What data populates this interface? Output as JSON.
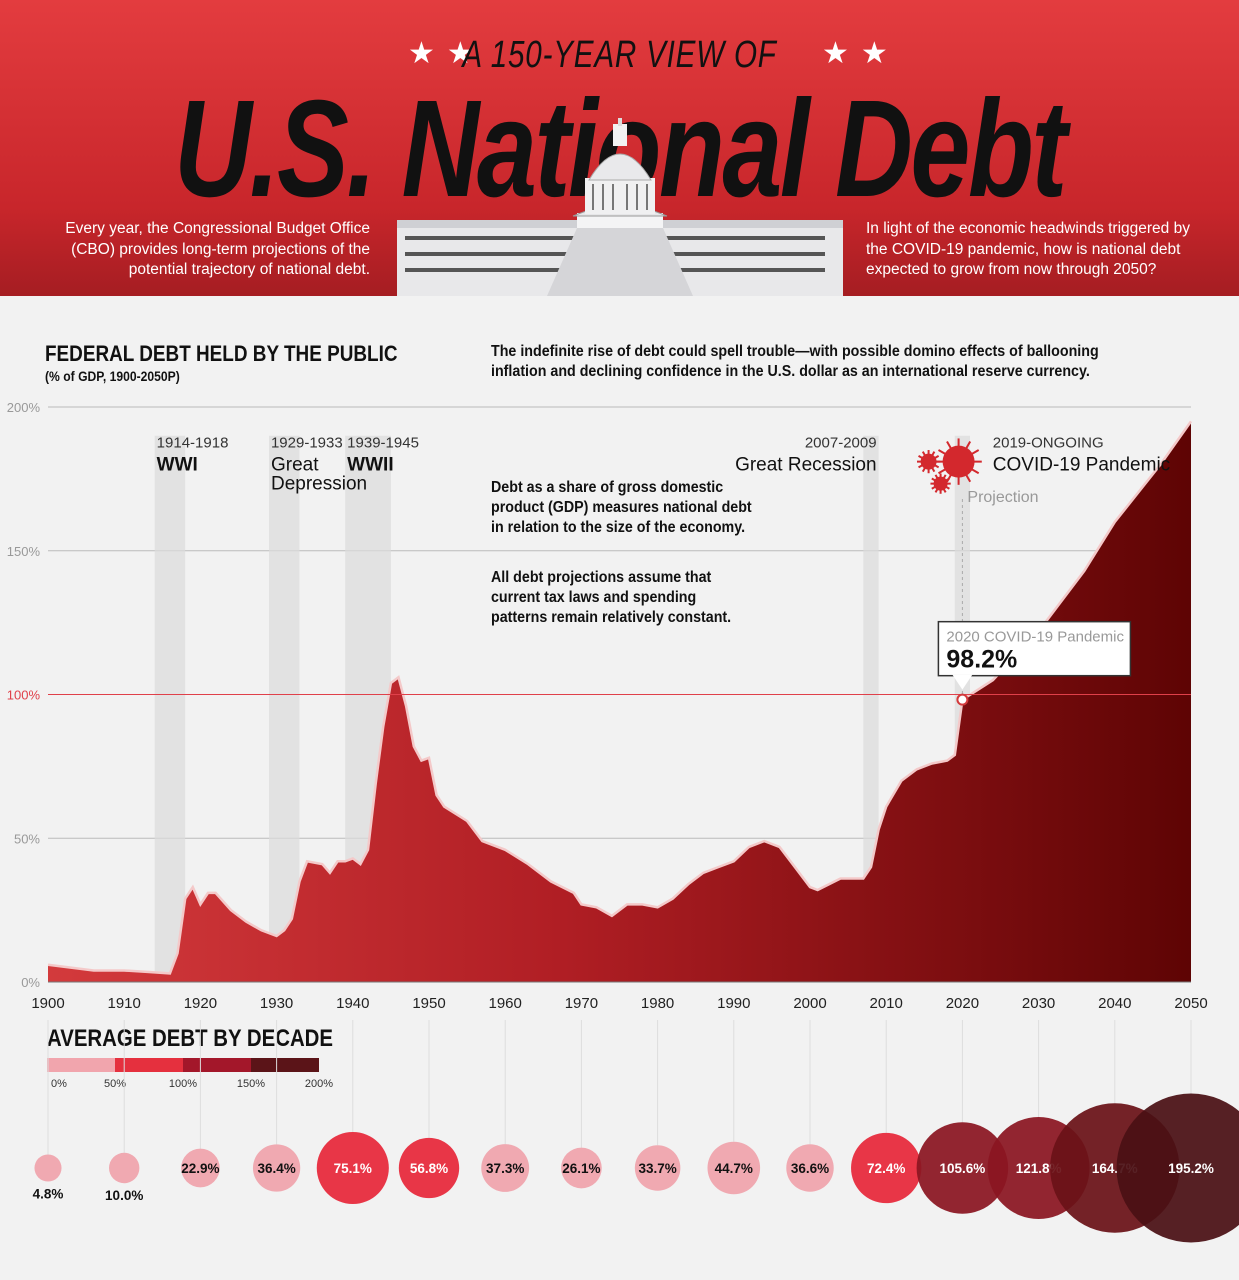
{
  "header": {
    "supertitle": "A 150-YEAR VIEW OF",
    "title": "U.S. National Debt",
    "intro_left": "Every year, the Congressional Budget Office (CBO) provides long-term projections of the potential trajectory of national debt.",
    "intro_right": "In light of the economic headwinds triggered by the COVID-19 pandemic, how is national debt expected to grow from now through 2050?"
  },
  "notes": {
    "top": "The indefinite rise of debt could spell trouble—with possible domino effects of ballooning inflation and declining confidence in the U.S. dollar as an international reserve currency.",
    "gdp": "Debt as a share of gross domestic product (GDP) measures national debt in relation to the size of the economy.",
    "assume": "All debt projections assume that current tax laws and spending patterns remain relatively constant."
  },
  "colors": {
    "header_red": "#d32f33",
    "area_light": "#d33a3c",
    "area_dark": "#5e0404",
    "line": "#f4c9c9",
    "ref_line": "#e0404a"
  },
  "chart_data": [
    {
      "type": "area",
      "title": "FEDERAL DEBT HELD BY THE PUBLIC",
      "subtitle": "(% of GDP, 1900-2050P)",
      "xlim": [
        1900,
        2050
      ],
      "ylim": [
        0,
        200
      ],
      "y_ticks": [
        0,
        50,
        100,
        150,
        200
      ],
      "y_tick_labels": [
        "0%",
        "50%",
        "100%",
        "150%",
        "200%"
      ],
      "x_ticks": [
        1900,
        1910,
        1920,
        1930,
        1940,
        1950,
        1960,
        1970,
        1980,
        1990,
        2000,
        2010,
        2020,
        2030,
        2040,
        2050
      ],
      "reference_line": 100,
      "projection_start": 2020,
      "projection_label": "Projection",
      "series": [
        {
          "x": [
            1900,
            1903,
            1906,
            1910,
            1913,
            1916,
            1917,
            1918,
            1919,
            1920,
            1921,
            1922,
            1924,
            1926,
            1928,
            1930,
            1931,
            1932,
            1933,
            1934,
            1936,
            1937,
            1938,
            1939,
            1940,
            1941,
            1942,
            1943,
            1944,
            1945,
            1946,
            1947,
            1948,
            1949,
            1950,
            1951,
            1952,
            1955,
            1957,
            1960,
            1963,
            1966,
            1969,
            1970,
            1972,
            1974,
            1976,
            1978,
            1980,
            1982,
            1984,
            1986,
            1988,
            1990,
            1992,
            1994,
            1996,
            1998,
            2000,
            2001,
            2004,
            2007,
            2008,
            2009,
            2010,
            2012,
            2014,
            2016,
            2018,
            2019,
            2020,
            2024,
            2030,
            2036,
            2040,
            2046,
            2050
          ],
          "y": [
            6,
            5,
            4,
            4,
            3.5,
            3,
            10,
            29,
            33,
            27,
            31,
            31,
            25,
            21,
            18,
            16,
            18,
            22,
            35,
            42,
            41,
            38,
            42,
            42,
            43,
            41,
            46,
            69,
            89,
            104,
            106,
            96,
            82,
            77,
            78,
            65,
            61,
            56,
            49,
            46,
            41,
            35,
            31,
            27,
            26,
            23,
            27,
            27,
            26,
            29,
            34,
            38,
            40,
            42,
            47,
            49,
            47,
            40,
            33,
            32,
            36,
            36,
            40,
            53,
            61,
            70,
            74,
            76,
            77,
            79,
            98.2,
            105,
            122,
            143,
            160,
            180,
            195
          ]
        }
      ],
      "events": [
        {
          "years": "1914-1918",
          "name": "WWI",
          "start": 1914,
          "end": 1918
        },
        {
          "years": "1929-1933",
          "name": "Great Depression",
          "start": 1929,
          "end": 1933
        },
        {
          "years": "1939-1945",
          "name": "WWII",
          "start": 1939,
          "end": 1945
        },
        {
          "years": "2007-2009",
          "name": "Great Recession",
          "start": 2007,
          "end": 2009
        },
        {
          "years": "2019-ONGOING",
          "name": "COVID-19 Pandemic",
          "start": 2019,
          "end": 2021
        }
      ],
      "callout": {
        "label": "2020 COVID-19 Pandemic",
        "value": "98.2%",
        "x": 2020,
        "y": 98.2
      }
    },
    {
      "type": "bubble",
      "title": "AVERAGE DEBT BY DECADE",
      "legend_ticks": [
        "0%",
        "50%",
        "100%",
        "150%",
        "200%"
      ],
      "legend_colors": [
        "#f1a5ad",
        "#e5303e",
        "#a3172a",
        "#5b1418"
      ],
      "decades": [
        1900,
        1910,
        1920,
        1930,
        1940,
        1950,
        1960,
        1970,
        1980,
        1990,
        2000,
        2010,
        2020,
        2030,
        2040,
        2050
      ],
      "values": [
        4.8,
        10.0,
        22.9,
        36.4,
        75.1,
        56.8,
        37.3,
        26.1,
        33.7,
        44.7,
        36.6,
        72.4,
        105.6,
        121.8,
        164.7,
        195.2
      ],
      "labels": [
        "4.8%",
        "10.0%",
        "22.9%",
        "36.4%",
        "75.1%",
        "56.8%",
        "37.3%",
        "26.1%",
        "33.7%",
        "44.7%",
        "36.6%",
        "72.4%",
        "105.6%",
        "121.8%",
        "164.7%",
        "195.2%"
      ]
    }
  ]
}
